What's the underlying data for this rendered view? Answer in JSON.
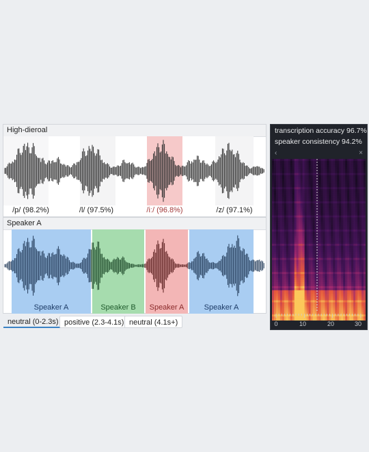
{
  "waveform_panel": {
    "title": "High-dieroal"
  },
  "phonemes": [
    {
      "label": "/p/ (98.2%)",
      "highlighted": false
    },
    {
      "label": "/l/ (97.5%)",
      "highlighted": false
    },
    {
      "label": "/iː/ (96.8%)",
      "highlighted": true
    },
    {
      "label": "/z/ (97.1%)",
      "highlighted": false
    }
  ],
  "speaker_panel": {
    "title": "Speaker A"
  },
  "speaker_segments": [
    {
      "label": "Speaker A",
      "color": "#a9cdf2"
    },
    {
      "label": "Speaker B",
      "color": "#a6dcae"
    },
    {
      "label": "Speaker A",
      "color": "#f3b6b6"
    },
    {
      "label": "Speaker A",
      "color": "#a9cdf2"
    }
  ],
  "sentiment_tabs": [
    {
      "label": "neutral (0-2.3s)",
      "active": true
    },
    {
      "label": "positive (2.3-4.1s)",
      "active": false
    },
    {
      "label": "neutral (4.1s+)",
      "active": false
    }
  ],
  "spectrogram": {
    "metrics": [
      "transcription accuracy 96.7%",
      "speaker consistency 94.2%"
    ],
    "nav": {
      "prev": "‹",
      "next": "×"
    },
    "x_ticks": [
      "0",
      "10",
      "20",
      "30"
    ]
  },
  "colors": {
    "accent": "#3b82c4",
    "highlight_red": "#f3b6b6",
    "speaker_a": "#a9cdf2",
    "speaker_b": "#a6dcae",
    "wave": "#2a2a2a"
  }
}
